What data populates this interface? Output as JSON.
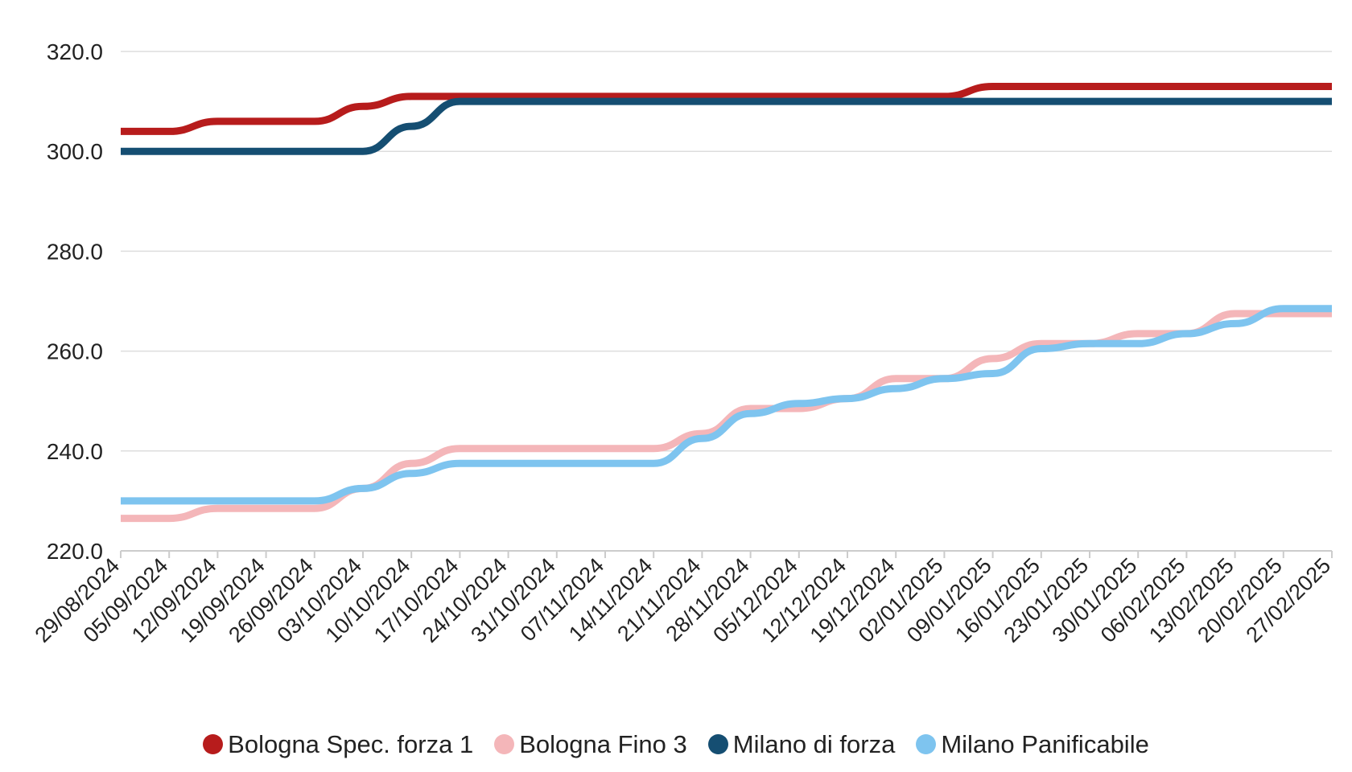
{
  "chart_data": {
    "type": "line",
    "title": "",
    "xlabel": "",
    "ylabel": "",
    "ylim": [
      220,
      320
    ],
    "yticks": [
      "220.0",
      "240.0",
      "260.0",
      "280.0",
      "300.0",
      "320.0"
    ],
    "grid": true,
    "legend_position": "bottom-center",
    "categories": [
      "29/08/2024",
      "05/09/2024",
      "12/09/2024",
      "19/09/2024",
      "26/09/2024",
      "03/10/2024",
      "10/10/2024",
      "17/10/2024",
      "24/10/2024",
      "31/10/2024",
      "07/11/2024",
      "14/11/2024",
      "21/11/2024",
      "28/11/2024",
      "05/12/2024",
      "12/12/2024",
      "19/12/2024",
      "02/01/2025",
      "09/01/2025",
      "16/01/2025",
      "23/01/2025",
      "30/01/2025",
      "06/02/2025",
      "13/02/2025",
      "20/02/2025",
      "27/02/2025"
    ],
    "series": [
      {
        "name": "Bologna Spec. forza 1",
        "color": "#b71c1c",
        "values": [
          304,
          304,
          306,
          306,
          306,
          309,
          311,
          311,
          311,
          311,
          311,
          311,
          311,
          311,
          311,
          311,
          311,
          311,
          313,
          313,
          313,
          313,
          313,
          313,
          313,
          313
        ]
      },
      {
        "name": "Bologna Fino 3",
        "color": "#f4b6b9",
        "values": [
          226.5,
          226.5,
          228.5,
          228.5,
          228.5,
          232.5,
          237.5,
          240.5,
          240.5,
          240.5,
          240.5,
          240.5,
          243.5,
          248.5,
          248.5,
          250.5,
          254.5,
          254.5,
          258.5,
          261.5,
          261.5,
          263.5,
          263.5,
          267.5,
          267.5,
          267.5
        ]
      },
      {
        "name": "Milano di forza",
        "color": "#154e72",
        "values": [
          300,
          300,
          300,
          300,
          300,
          300,
          305,
          310,
          310,
          310,
          310,
          310,
          310,
          310,
          310,
          310,
          310,
          310,
          310,
          310,
          310,
          310,
          310,
          310,
          310,
          310
        ]
      },
      {
        "name": "Milano Panificabile",
        "color": "#7ec4ef",
        "values": [
          230,
          230,
          230,
          230,
          230,
          232.5,
          235.5,
          237.5,
          237.5,
          237.5,
          237.5,
          237.5,
          242.5,
          247.5,
          249.5,
          250.5,
          252.5,
          254.5,
          255.5,
          260.5,
          261.5,
          261.5,
          263.5,
          265.5,
          268.5,
          268.5
        ]
      }
    ]
  }
}
